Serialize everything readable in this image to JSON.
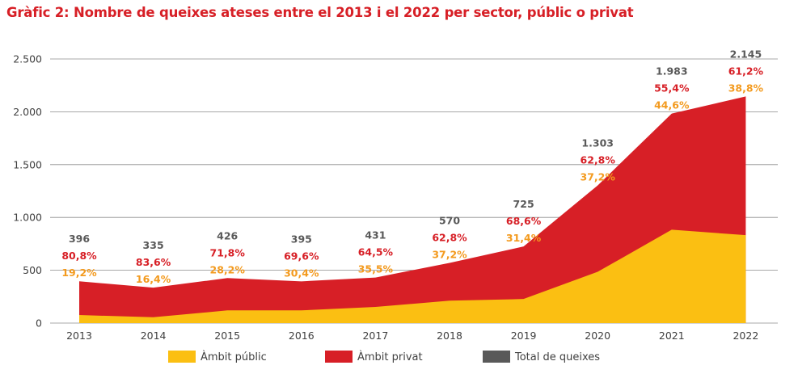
{
  "title": "Gràfic 2: Nombre de queixes ateses entre el 2013 i el 2022 per sector, públic o privat",
  "colors": {
    "title": "#d71f26",
    "public": "#fbbf12",
    "private": "#d71f26",
    "total": "#595959",
    "public_label": "#f39a1e",
    "grid": "#8c8c8c"
  },
  "chart_data": {
    "type": "area",
    "stacked": true,
    "categories": [
      "2013",
      "2014",
      "2015",
      "2016",
      "2017",
      "2018",
      "2019",
      "2020",
      "2021",
      "2022"
    ],
    "ylim": [
      0,
      2500
    ],
    "yticks": [
      0,
      500,
      1000,
      1500,
      2000,
      2500
    ],
    "ytick_labels": [
      "0",
      "500",
      "1.000",
      "1.500",
      "2.000",
      "2.500"
    ],
    "grid": true,
    "legend_position": "bottom",
    "series": [
      {
        "name": "Àmbit públic",
        "values": [
          76,
          55,
          120,
          120,
          153,
          212,
          228,
          485,
          884,
          832
        ],
        "pct_labels": [
          "19,2%",
          "16,4%",
          "28,2%",
          "30,4%",
          "35,5%",
          "37,2%",
          "31,4%",
          "37,2%",
          "44,6%",
          "38,8%"
        ]
      },
      {
        "name": "Àmbit privat",
        "values": [
          320,
          280,
          306,
          275,
          278,
          358,
          497,
          818,
          1099,
          1313
        ],
        "pct_labels": [
          "80,8%",
          "83,6%",
          "71,8%",
          "69,6%",
          "64,5%",
          "62,8%",
          "68,6%",
          "62,8%",
          "55,4%",
          "61,2%"
        ]
      },
      {
        "name": "Total de queixes",
        "values": [
          396,
          335,
          426,
          395,
          431,
          570,
          725,
          1303,
          1983,
          2145
        ],
        "labels": [
          "396",
          "335",
          "426",
          "395",
          "431",
          "570",
          "725",
          "1.303",
          "1.983",
          "2.145"
        ]
      }
    ]
  }
}
